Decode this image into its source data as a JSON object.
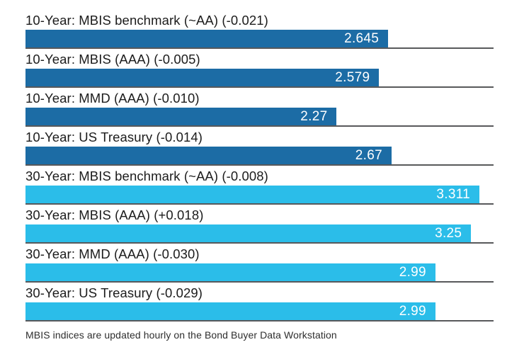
{
  "chart_data": {
    "type": "bar",
    "orientation": "horizontal",
    "grid": false,
    "legend": "none",
    "categories": [
      "10-Year: MBIS benchmark (~AA) (-0.021)",
      "10-Year: MBIS (AAA) (-0.005)",
      "10-Year: MMD (AAA) (-0.010)",
      "10-Year: US Treasury (-0.014)",
      "30-Year: MBIS benchmark (~AA) (-0.008)",
      "30-Year: MBIS (AAA) (+0.018)",
      "30-Year: MMD (AAA) (-0.030)",
      "30-Year: US Treasury (-0.029)"
    ],
    "values": [
      2.645,
      2.579,
      2.27,
      2.67,
      3.311,
      3.25,
      2.99,
      2.99
    ],
    "value_labels": [
      "2.645",
      "2.579",
      "2.27",
      "2.67",
      "3.311",
      "3.25",
      "2.99",
      "2.99"
    ],
    "groups": [
      "10-year",
      "10-year",
      "10-year",
      "10-year",
      "30-year",
      "30-year",
      "30-year",
      "30-year"
    ],
    "bar_colors": [
      "#1c6ca5",
      "#1c6ca5",
      "#1c6ca5",
      "#1c6ca5",
      "#2bbde9",
      "#2bbde9",
      "#2bbde9",
      "#2bbde9"
    ],
    "colors": {
      "ten_year_bar": "#1c6ca5",
      "thirty_year_bar": "#2bbde9",
      "baseline": "#58595b",
      "value_text": "#ffffff",
      "label_text": "#1c1c1c"
    },
    "xlim": [
      0,
      3.414
    ],
    "footnote": "MBIS indices are updated hourly on the Bond Buyer Data Workstation"
  }
}
